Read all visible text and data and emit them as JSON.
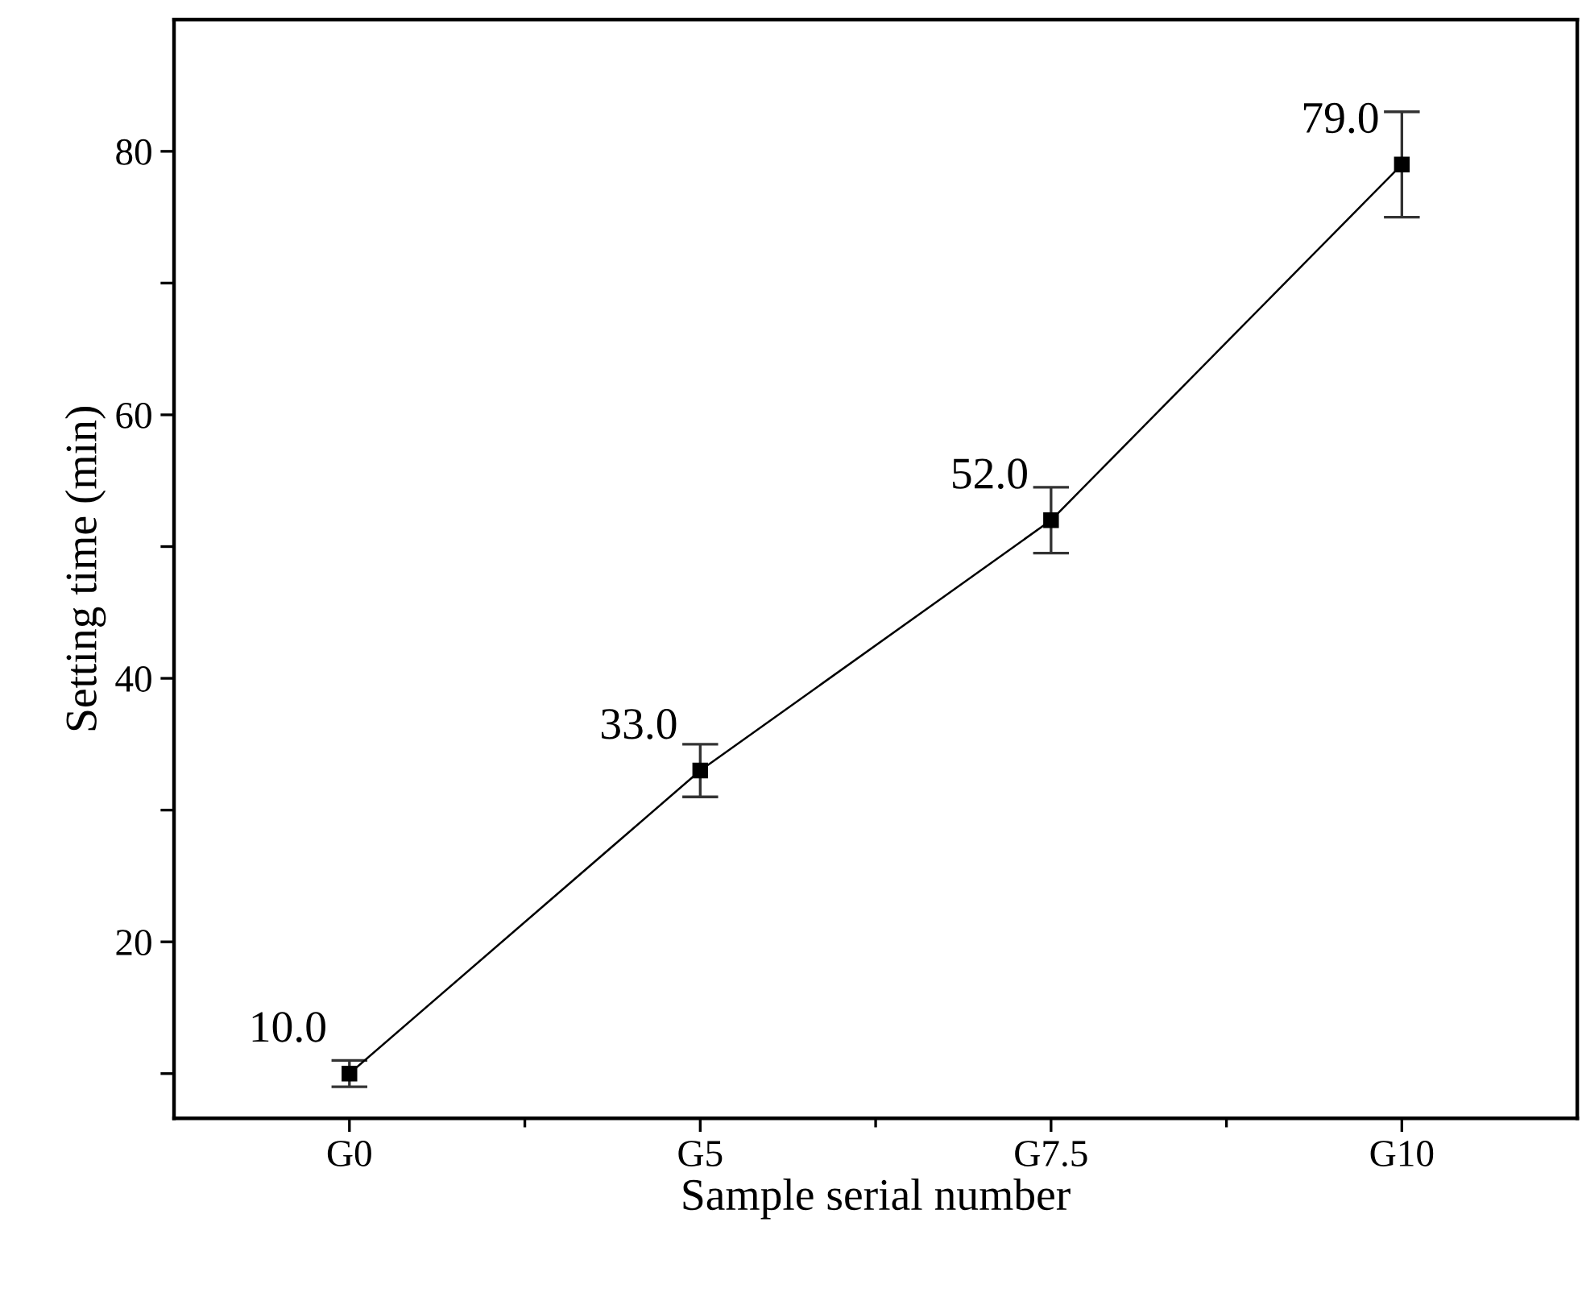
{
  "chart_data": {
    "type": "line",
    "xlabel": "Sample serial number",
    "ylabel": "Setting time (min)",
    "categories": [
      "G0",
      "G5",
      "G7.5",
      "G10"
    ],
    "series": [
      {
        "color": "#000000",
        "values": [
          10,
          33,
          52,
          79
        ],
        "errors": [
          1,
          2,
          2.5,
          4
        ],
        "value_labels": [
          "10.0",
          "33.0",
          "52.0",
          "79.0"
        ]
      }
    ],
    "marker": "square",
    "line_style": "solid",
    "ylim": [
      6.6,
      90
    ],
    "yticks": [
      {
        "value": 10,
        "label": null
      },
      20,
      {
        "value": 30,
        "label": null
      },
      40,
      {
        "value": 50,
        "label": null
      },
      60,
      {
        "value": 70,
        "label": null
      },
      80
    ],
    "grid": false
  }
}
